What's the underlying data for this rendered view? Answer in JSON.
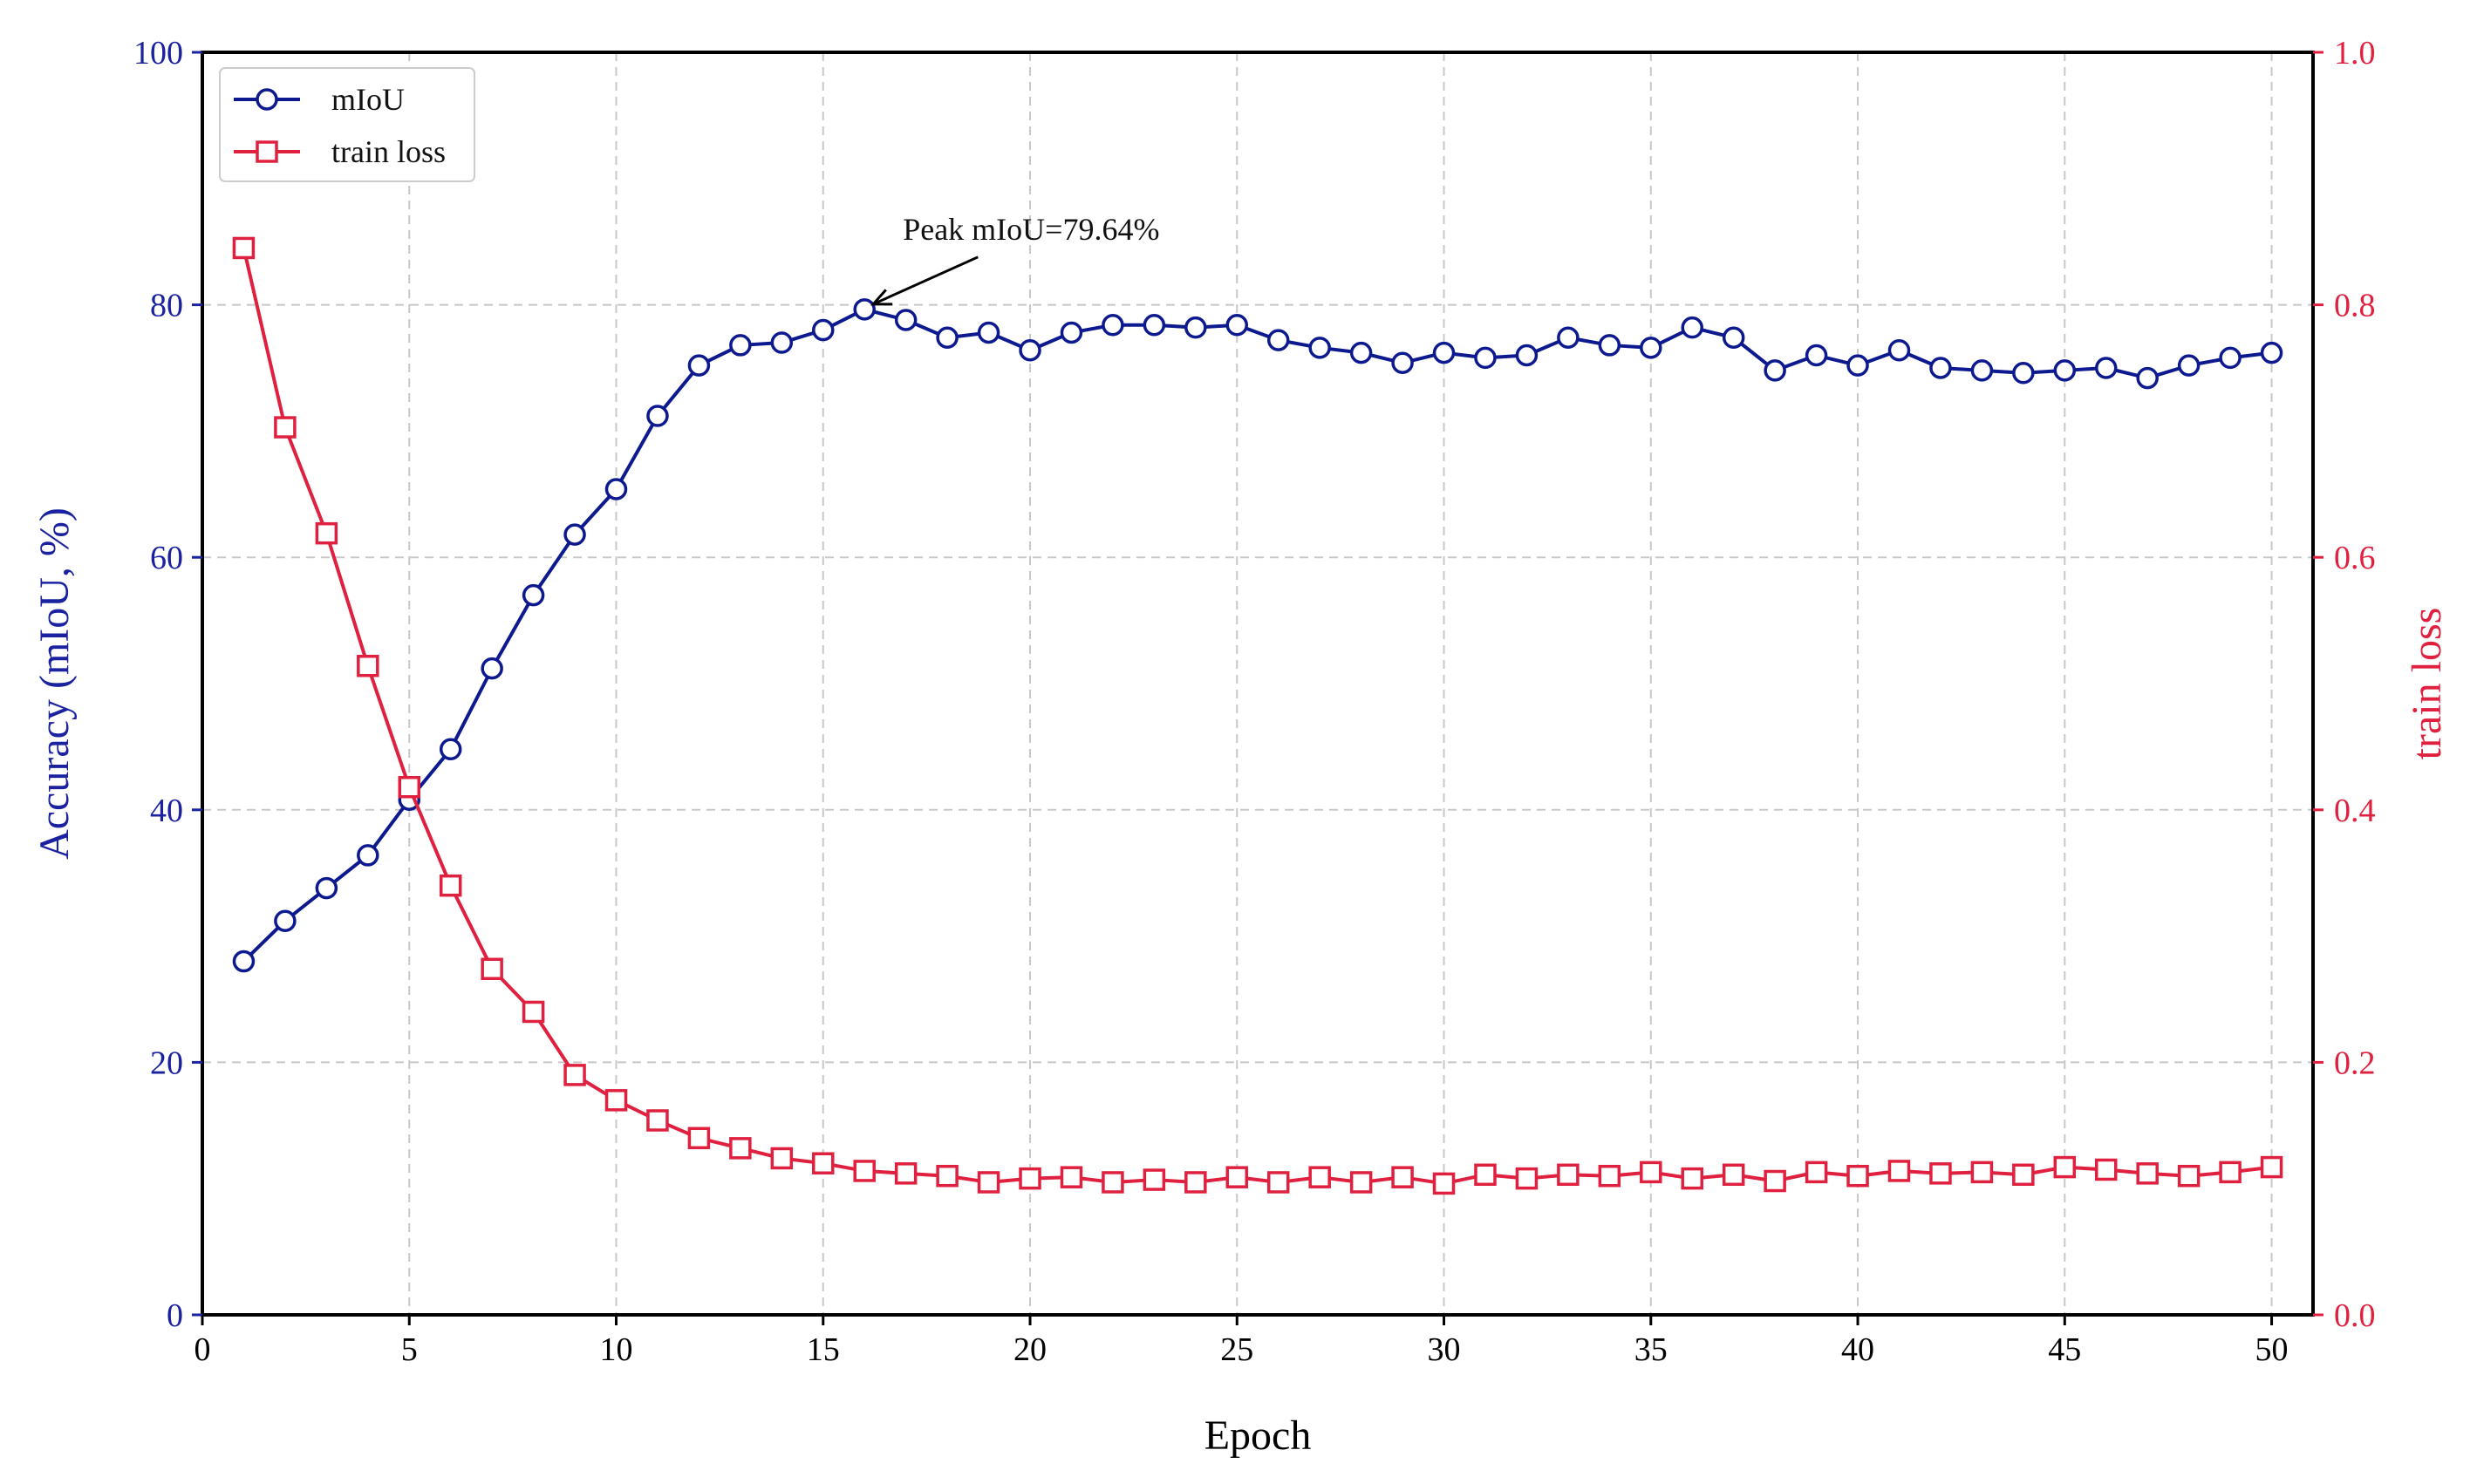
{
  "chart_data": {
    "type": "line",
    "xlabel": "Epoch",
    "ylabel": "Accuracy (mIoU, %)",
    "y2label": "train loss",
    "xlim": [
      0,
      51
    ],
    "ylim": [
      0,
      100
    ],
    "y2lim": [
      0.0,
      1.0
    ],
    "x_ticks": [
      0,
      5,
      10,
      15,
      20,
      25,
      30,
      35,
      40,
      45,
      50
    ],
    "y_ticks": [
      0,
      20,
      40,
      60,
      80,
      100
    ],
    "y2_ticks": [
      0.0,
      0.2,
      0.4,
      0.6,
      0.8,
      1.0
    ],
    "y2_tick_labels": [
      "0.0",
      "0.2",
      "0.4",
      "0.6",
      "0.8",
      "1.0"
    ],
    "grid": true,
    "legend_position": "top-left",
    "x": [
      1,
      2,
      3,
      4,
      5,
      6,
      7,
      8,
      9,
      10,
      11,
      12,
      13,
      14,
      15,
      16,
      17,
      18,
      19,
      20,
      21,
      22,
      23,
      24,
      25,
      26,
      27,
      28,
      29,
      30,
      31,
      32,
      33,
      34,
      35,
      36,
      37,
      38,
      39,
      40,
      41,
      42,
      43,
      44,
      45,
      46,
      47,
      48,
      49,
      50
    ],
    "series": [
      {
        "name": "mIoU",
        "axis": "left",
        "color": "#0d1a8f",
        "marker": "circle",
        "values": [
          28.0,
          31.2,
          33.8,
          36.4,
          40.8,
          44.8,
          51.2,
          57.0,
          61.8,
          65.4,
          71.2,
          75.2,
          76.8,
          77.0,
          78.0,
          79.64,
          78.8,
          77.4,
          77.8,
          76.4,
          77.8,
          78.4,
          78.4,
          78.2,
          78.4,
          77.2,
          76.6,
          76.2,
          75.4,
          76.2,
          75.8,
          76.0,
          77.4,
          76.8,
          76.6,
          78.2,
          77.4,
          74.8,
          76.0,
          75.2,
          76.4,
          75.0,
          74.8,
          74.6,
          74.8,
          75.0,
          74.2,
          75.2,
          75.8,
          76.2
        ]
      },
      {
        "name": "train loss",
        "axis": "right",
        "color": "#e0203f",
        "marker": "square",
        "values": [
          0.845,
          0.703,
          0.619,
          0.514,
          0.418,
          0.34,
          0.274,
          0.24,
          0.19,
          0.17,
          0.154,
          0.14,
          0.132,
          0.124,
          0.12,
          0.114,
          0.112,
          0.11,
          0.105,
          0.108,
          0.109,
          0.105,
          0.107,
          0.105,
          0.109,
          0.105,
          0.109,
          0.105,
          0.109,
          0.104,
          0.111,
          0.108,
          0.111,
          0.11,
          0.113,
          0.108,
          0.111,
          0.106,
          0.113,
          0.11,
          0.114,
          0.112,
          0.113,
          0.111,
          0.117,
          0.115,
          0.112,
          0.11,
          0.113,
          0.117
        ]
      }
    ],
    "annotations": [
      {
        "text": "Peak mIoU=79.64%",
        "x": 16,
        "y": 79.64,
        "series": "mIoU"
      }
    ]
  },
  "colors": {
    "left_axis": "#1a22a0",
    "right_axis": "#e0203f",
    "grid": "#c8c8c8",
    "frame": "#000000"
  }
}
